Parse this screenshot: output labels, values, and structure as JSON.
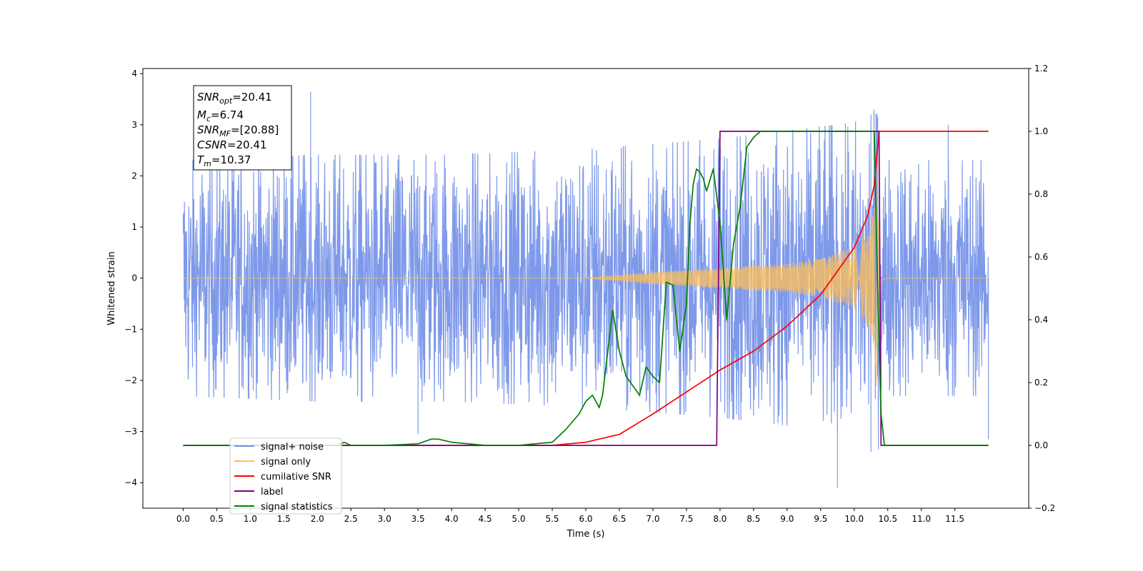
{
  "chart_data": {
    "type": "line",
    "xlabel": "Time (s)",
    "ylabel": "Whitened strain",
    "x_ticks": [
      "0.0",
      "0.5",
      "1.0",
      "1.5",
      "2.0",
      "2.5",
      "3.0",
      "3.5",
      "4.0",
      "4.5",
      "5.0",
      "5.5",
      "6.0",
      "6.5",
      "7.0",
      "7.5",
      "8.0",
      "8.5",
      "9.0",
      "9.5",
      "10.0",
      "10.5",
      "11.0",
      "11.5"
    ],
    "xlim": [
      -0.6,
      12.6
    ],
    "ylim": [
      -4.5,
      4.1
    ],
    "y_ticks": [
      "4",
      "3",
      "2",
      "1",
      "0",
      "−1",
      "−2",
      "−3",
      "−4"
    ],
    "y2lim": [
      -0.2,
      1.2
    ],
    "y2_ticks": [
      "1.2",
      "1.0",
      "0.8",
      "0.6",
      "0.4",
      "0.2",
      "0.0",
      "−0.2"
    ],
    "grid": false,
    "legend_placement": "lower-left",
    "annotation": {
      "snr_opt": {
        "main": "SNR",
        "sub": "opt",
        "value": "=20.41"
      },
      "mc": {
        "main": "M",
        "sub": "c",
        "value": "=6.74"
      },
      "snr_mf": {
        "main": "SNR",
        "sub": "MF",
        "value": "=[20.88]"
      },
      "csnr": {
        "main": "CSNR",
        "value": "=20.41"
      },
      "tm": {
        "main": "T",
        "sub": "m",
        "value": "=10.37"
      }
    },
    "series": [
      {
        "name": "signal+ noise",
        "color": "#7793e8",
        "axis": "left",
        "kind": "noise",
        "x_range": [
          0,
          12
        ],
        "envelope": [
          [
            0,
            2.2
          ],
          [
            2,
            2.3
          ],
          [
            4,
            2.3
          ],
          [
            6,
            2.4
          ],
          [
            8,
            2.6
          ],
          [
            10,
            2.9
          ],
          [
            10.37,
            3.2
          ],
          [
            10.4,
            2.2
          ],
          [
            12,
            2.2
          ]
        ],
        "peaks": [
          [
            1.9,
            3.65
          ],
          [
            10.25,
            3.2
          ],
          [
            10.35,
            3.15
          ],
          [
            11.4,
            3.0
          ],
          [
            9.75,
            -4.1
          ],
          [
            10.25,
            -3.4
          ],
          [
            3.5,
            -3.05
          ],
          [
            12,
            -3.15
          ]
        ]
      },
      {
        "name": "signal only",
        "color": "#ffbf55",
        "axis": "left",
        "kind": "chirp",
        "merger_time": 10.37,
        "x_range": [
          0,
          12
        ],
        "envelope": [
          [
            6.0,
            0.0
          ],
          [
            7.0,
            0.12
          ],
          [
            8.0,
            0.2
          ],
          [
            9.0,
            0.28
          ],
          [
            9.5,
            0.38
          ],
          [
            10.0,
            0.6
          ],
          [
            10.2,
            0.9
          ],
          [
            10.3,
            1.4
          ],
          [
            10.35,
            2.5
          ],
          [
            10.4,
            0.05
          ],
          [
            10.5,
            0.0
          ]
        ]
      },
      {
        "name": "cumilative SNR",
        "color": "#ff0000",
        "axis": "right",
        "x": [
          0,
          5.5,
          6.0,
          6.5,
          7.0,
          7.5,
          8.0,
          8.5,
          9.0,
          9.5,
          10.0,
          10.2,
          10.3,
          10.37,
          12.0
        ],
        "y": [
          0,
          0,
          0.01,
          0.035,
          0.1,
          0.17,
          0.24,
          0.3,
          0.38,
          0.48,
          0.63,
          0.73,
          0.83,
          1.0,
          1.0
        ]
      },
      {
        "name": "label",
        "color": "#800080",
        "axis": "right",
        "x": [
          0,
          7.95,
          8.0,
          10.37,
          10.4,
          12.0
        ],
        "y": [
          0,
          0,
          1,
          1,
          0,
          0
        ]
      },
      {
        "name": "signal statistics",
        "color": "#008000",
        "axis": "right",
        "x": [
          0,
          2.3,
          2.4,
          2.5,
          3.0,
          3.5,
          3.7,
          3.8,
          4.0,
          4.5,
          5.0,
          5.5,
          5.7,
          5.9,
          6.0,
          6.1,
          6.2,
          6.25,
          6.4,
          6.5,
          6.6,
          6.7,
          6.8,
          6.9,
          7.0,
          7.1,
          7.2,
          7.3,
          7.4,
          7.5,
          7.55,
          7.6,
          7.65,
          7.7,
          7.75,
          7.8,
          7.9,
          8.0,
          8.1,
          8.2,
          8.3,
          8.4,
          8.5,
          8.6,
          8.7,
          8.8,
          9.0,
          10.0,
          10.3,
          10.35,
          10.4,
          10.45,
          12.0
        ],
        "y": [
          0,
          0,
          0.01,
          0.0,
          0.0,
          0.005,
          0.02,
          0.02,
          0.01,
          0.0,
          0.0,
          0.01,
          0.05,
          0.1,
          0.14,
          0.16,
          0.12,
          0.16,
          0.43,
          0.3,
          0.22,
          0.19,
          0.16,
          0.25,
          0.22,
          0.2,
          0.52,
          0.51,
          0.3,
          0.45,
          0.7,
          0.83,
          0.88,
          0.87,
          0.85,
          0.81,
          0.88,
          0.71,
          0.4,
          0.64,
          0.76,
          0.95,
          0.98,
          1.0,
          1.0,
          1.0,
          1.0,
          1.0,
          1.0,
          0.5,
          0.1,
          0.0,
          0.0
        ]
      }
    ]
  }
}
